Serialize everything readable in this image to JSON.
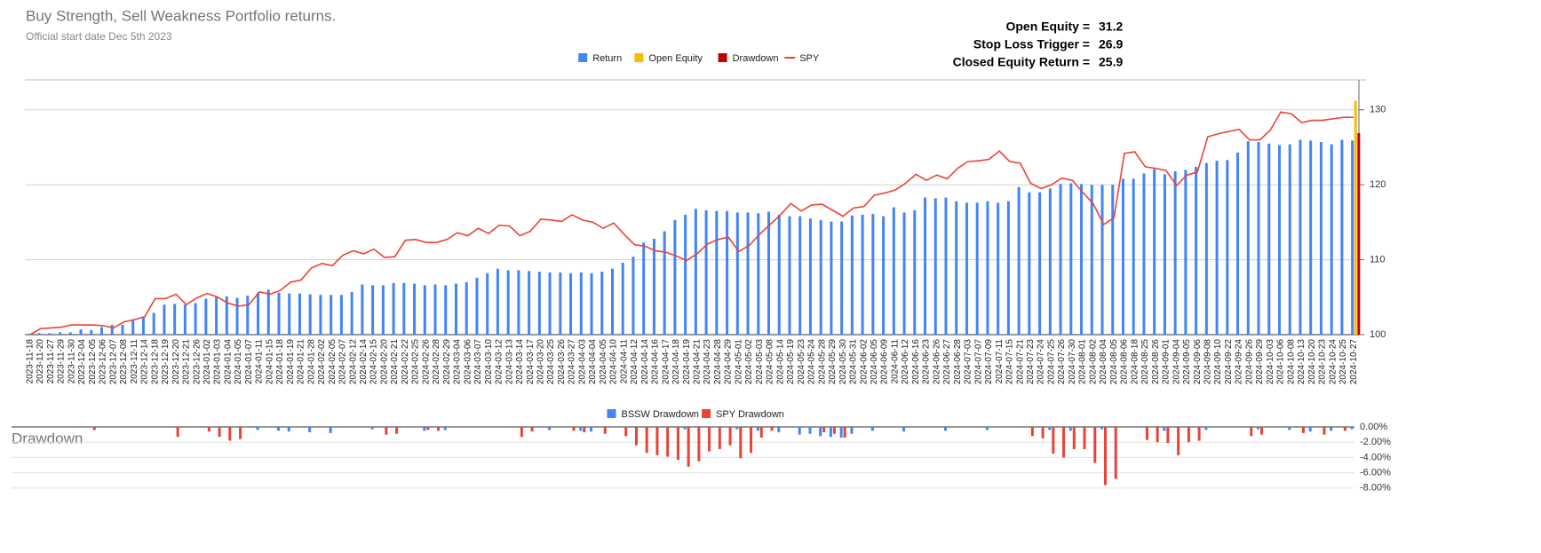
{
  "chart_data": [
    {
      "type": "combo",
      "title": "Buy Strength, Sell Weakness Portfolio returns.",
      "subtitle": "Official start date Dec 5th 2023",
      "annotations": [
        {
          "label": "Open Equity =",
          "value": 31.2
        },
        {
          "label": "Stop Loss Trigger =",
          "value": 26.9
        },
        {
          "label": "Closed Equity Return =",
          "value": 25.9
        }
      ],
      "categories": [
        "2023-11-18",
        "2023-11-20",
        "2023-11-27",
        "2023-11-29",
        "2023-11-30",
        "2023-12-04",
        "2023-12-05",
        "2023-12-06",
        "2023-12-07",
        "2023-12-08",
        "2023-12-11",
        "2023-12-14",
        "2023-12-18",
        "2023-12-19",
        "2023-12-20",
        "2023-12-21",
        "2023-12-26",
        "2024-01-02",
        "2024-01-03",
        "2024-01-04",
        "2024-01-05",
        "2024-01-07",
        "2024-01-11",
        "2024-01-15",
        "2024-01-18",
        "2024-01-19",
        "2024-01-21",
        "2024-01-28",
        "2024-02-02",
        "2024-02-05",
        "2024-02-07",
        "2024-02-12",
        "2024-02-14",
        "2024-02-15",
        "2024-02-20",
        "2024-02-21",
        "2024-02-22",
        "2024-02-25",
        "2024-02-26",
        "2024-02-28",
        "2024-02-29",
        "2024-03-04",
        "2024-03-06",
        "2024-03-07",
        "2024-03-10",
        "2024-03-12",
        "2024-03-13",
        "2024-03-14",
        "2024-03-17",
        "2024-03-20",
        "2024-03-25",
        "2024-03-26",
        "2024-03-27",
        "2024-04-03",
        "2024-04-04",
        "2024-04-05",
        "2024-04-10",
        "2024-04-11",
        "2024-04-12",
        "2024-04-14",
        "2024-04-16",
        "2024-04-17",
        "2024-04-18",
        "2024-04-19",
        "2024-04-21",
        "2024-04-23",
        "2024-04-28",
        "2024-04-29",
        "2024-05-01",
        "2024-05-02",
        "2024-05-03",
        "2024-05-08",
        "2024-05-14",
        "2024-05-19",
        "2024-05-23",
        "2024-05-24",
        "2024-05-28",
        "2024-05-29",
        "2024-05-30",
        "2024-05-31",
        "2024-06-02",
        "2024-06-05",
        "2024-06-09",
        "2024-06-11",
        "2024-06-12",
        "2024-06-16",
        "2024-06-23",
        "2024-06-26",
        "2024-06-27",
        "2024-06-28",
        "2024-07-03",
        "2024-07-07",
        "2024-07-09",
        "2024-07-11",
        "2024-07-15",
        "2024-07-21",
        "2024-07-23",
        "2024-07-24",
        "2024-07-25",
        "2024-07-26",
        "2024-07-30",
        "2024-08-01",
        "2024-08-02",
        "2024-08-04",
        "2024-08-05",
        "2024-08-06",
        "2024-08-18",
        "2024-08-25",
        "2024-08-26",
        "2024-09-01",
        "2024-09-04",
        "2024-09-05",
        "2024-09-06",
        "2024-09-08",
        "2024-09-10",
        "2024-09-22",
        "2024-09-24",
        "2024-09-26",
        "2024-09-29",
        "2024-10-03",
        "2024-10-06",
        "2024-10-08",
        "2024-10-13",
        "2024-10-20",
        "2024-10-23",
        "2024-10-24",
        "2024-10-25",
        "2024-10-27"
      ],
      "series": [
        {
          "name": "Return",
          "type": "bar",
          "color": "#4285f4",
          "values": [
            100.1,
            100.2,
            100.2,
            100.3,
            100.3,
            100.7,
            100.6,
            101.0,
            101.3,
            101.3,
            101.9,
            102.3,
            102.9,
            104.0,
            104.1,
            104.0,
            104.2,
            104.8,
            105.0,
            105.1,
            104.9,
            105.2,
            105.6,
            106.0,
            105.6,
            105.5,
            105.5,
            105.4,
            105.3,
            105.3,
            105.3,
            105.7,
            106.7,
            106.6,
            106.6,
            106.9,
            106.9,
            106.8,
            106.6,
            106.7,
            106.6,
            106.8,
            107.0,
            107.6,
            108.2,
            108.8,
            108.6,
            108.6,
            108.5,
            108.4,
            108.3,
            108.3,
            108.2,
            108.3,
            108.2,
            108.4,
            108.8,
            109.6,
            110.4,
            112.3,
            112.8,
            113.8,
            115.3,
            116.0,
            116.8,
            116.6,
            116.5,
            116.5,
            116.3,
            116.3,
            116.2,
            116.4,
            116.0,
            115.8,
            115.8,
            115.5,
            115.3,
            115.1,
            115.1,
            115.9,
            116.0,
            116.1,
            115.8,
            117.0,
            116.3,
            116.6,
            118.3,
            118.2,
            118.3,
            117.8,
            117.6,
            117.6,
            117.8,
            117.6,
            117.8,
            119.7,
            119.0,
            119.0,
            119.5,
            120.1,
            120.2,
            120.1,
            120.0,
            120.0,
            120.0,
            120.8,
            120.8,
            121.5,
            122.1,
            121.4,
            121.8,
            122.0,
            122.4,
            122.9,
            123.2,
            123.3,
            124.3,
            125.8,
            125.7,
            125.5,
            125.3,
            125.4,
            126.0,
            125.9,
            125.7,
            125.4,
            126.0,
            125.9
          ]
        },
        {
          "name": "Open Equity",
          "type": "bar",
          "color": "#fbbc04",
          "values": [
            null,
            null,
            null,
            null,
            null,
            null,
            null,
            null,
            null,
            null,
            null,
            null,
            null,
            null,
            null,
            null,
            null,
            null,
            null,
            null,
            null,
            null,
            null,
            null,
            null,
            null,
            null,
            null,
            null,
            null,
            null,
            null,
            null,
            null,
            null,
            null,
            null,
            null,
            null,
            null,
            null,
            null,
            null,
            null,
            null,
            null,
            null,
            null,
            null,
            null,
            null,
            null,
            null,
            null,
            null,
            null,
            null,
            null,
            null,
            null,
            null,
            null,
            null,
            null,
            null,
            null,
            null,
            null,
            null,
            null,
            null,
            null,
            null,
            null,
            null,
            null,
            null,
            null,
            null,
            null,
            null,
            null,
            null,
            null,
            null,
            null,
            null,
            null,
            null,
            null,
            null,
            null,
            null,
            null,
            null,
            null,
            null,
            null,
            null,
            null,
            null,
            null,
            null,
            null,
            null,
            null,
            null,
            null,
            null,
            null,
            null,
            null,
            null,
            null,
            null,
            null,
            null,
            null,
            null,
            null,
            null,
            null,
            null,
            null,
            null,
            null,
            null,
            131.2
          ]
        },
        {
          "name": "Drawdown",
          "type": "bar",
          "color": "#c00000",
          "values": [
            null,
            null,
            null,
            null,
            null,
            null,
            null,
            null,
            null,
            null,
            null,
            null,
            null,
            null,
            null,
            null,
            null,
            null,
            null,
            null,
            null,
            null,
            null,
            null,
            null,
            null,
            null,
            null,
            null,
            null,
            null,
            null,
            null,
            null,
            null,
            null,
            null,
            null,
            null,
            null,
            null,
            null,
            null,
            null,
            null,
            null,
            null,
            null,
            null,
            null,
            null,
            null,
            null,
            null,
            null,
            null,
            null,
            null,
            null,
            null,
            null,
            null,
            null,
            null,
            null,
            null,
            null,
            null,
            null,
            null,
            null,
            null,
            null,
            null,
            null,
            null,
            null,
            null,
            null,
            null,
            null,
            null,
            null,
            null,
            null,
            null,
            null,
            null,
            null,
            null,
            null,
            null,
            null,
            null,
            null,
            null,
            null,
            null,
            null,
            null,
            null,
            null,
            null,
            null,
            null,
            null,
            null,
            null,
            null,
            null,
            null,
            null,
            null,
            null,
            null,
            null,
            null,
            null,
            null,
            null,
            null,
            null,
            null,
            null,
            null,
            null,
            null,
            126.9
          ]
        },
        {
          "name": "SPY",
          "type": "line",
          "color": "#ea4335",
          "values": [
            100.0,
            100.8,
            100.9,
            101.0,
            101.3,
            101.3,
            101.3,
            101.2,
            100.9,
            101.7,
            102.0,
            102.4,
            104.8,
            104.8,
            105.4,
            104.0,
            104.9,
            105.5,
            105.0,
            104.2,
            103.8,
            104.0,
            105.7,
            105.4,
            105.9,
            107.0,
            107.3,
            108.9,
            109.5,
            109.2,
            110.6,
            111.2,
            110.8,
            111.4,
            110.3,
            110.4,
            112.6,
            112.7,
            112.3,
            112.3,
            112.7,
            113.6,
            113.2,
            114.2,
            113.5,
            114.6,
            114.5,
            113.2,
            113.8,
            115.4,
            115.3,
            115.1,
            116.0,
            115.3,
            115.0,
            114.2,
            114.9,
            113.4,
            112.0,
            111.8,
            111.2,
            111.0,
            110.5,
            109.9,
            110.8,
            112.1,
            112.7,
            113.0,
            111.1,
            111.9,
            113.4,
            114.7,
            116.0,
            117.5,
            116.5,
            117.3,
            117.4,
            116.6,
            115.8,
            116.9,
            117.1,
            118.6,
            118.9,
            119.3,
            120.2,
            121.4,
            120.6,
            121.3,
            120.8,
            122.2,
            123.1,
            123.2,
            123.4,
            124.5,
            123.1,
            122.9,
            120.2,
            119.5,
            120.0,
            120.9,
            120.6,
            119.0,
            117.5,
            114.7,
            115.6,
            124.2,
            124.4,
            122.4,
            122.2,
            121.9,
            119.9,
            121.3,
            121.7,
            126.4,
            126.8,
            127.1,
            127.4,
            126.0,
            126.0,
            127.3,
            129.7,
            129.5,
            128.3,
            128.6,
            128.6,
            128.8,
            129.0,
            129.0
          ]
        }
      ],
      "ylim": [
        100,
        134
      ],
      "yticks": [
        100,
        110,
        120,
        130
      ],
      "grid": true,
      "legend": "top"
    },
    {
      "type": "bar",
      "title": "Drawdown",
      "series": [
        {
          "name": "BSSW Drawdown",
          "color": "#4285f4",
          "values": [
            0,
            0,
            0,
            0,
            0,
            0,
            0,
            0,
            0,
            0,
            0,
            0,
            0,
            0,
            0,
            0,
            0,
            0,
            0,
            0,
            0,
            0,
            -0.4,
            0,
            -0.5,
            -0.6,
            0,
            -0.7,
            0,
            -0.8,
            0,
            0,
            0,
            -0.3,
            0,
            0,
            0,
            0,
            -0.5,
            0,
            -0.4,
            0,
            0,
            0,
            0,
            0,
            0,
            0,
            0,
            0,
            -0.4,
            0,
            0,
            -0.5,
            -0.6,
            0,
            0,
            0,
            0,
            0,
            0,
            0,
            0,
            -0.3,
            0,
            0,
            0,
            0,
            -0.3,
            0,
            -0.5,
            0,
            -0.7,
            0,
            -1.0,
            -0.9,
            -1.2,
            -1.3,
            -1.4,
            -0.9,
            0,
            -0.5,
            0,
            0,
            -0.6,
            0,
            0,
            0,
            -0.5,
            0,
            0,
            0,
            -0.4,
            0,
            0,
            0,
            0,
            0,
            -0.4,
            0,
            -0.5,
            0,
            0,
            -0.3,
            0,
            0,
            0,
            0,
            0,
            -0.5,
            0,
            0,
            0,
            -0.4,
            0,
            0,
            0,
            0,
            -0.3,
            0,
            0,
            -0.4,
            0,
            -0.6,
            0,
            -0.5,
            0,
            -0.3
          ]
        },
        {
          "name": "SPY Drawdown",
          "color": "#ea4335",
          "values": [
            0,
            0,
            0,
            0,
            0,
            0,
            -0.4,
            0,
            0,
            0,
            0,
            0,
            0,
            0,
            -1.3,
            0,
            0,
            -0.6,
            -1.3,
            -1.8,
            -1.6,
            0,
            0,
            0,
            0,
            0,
            0,
            0,
            0,
            0,
            0,
            0,
            0,
            0,
            -1.0,
            -0.9,
            0,
            0,
            -0.4,
            -0.5,
            0,
            0,
            0,
            0,
            0,
            0,
            0,
            -1.3,
            -0.6,
            0,
            0,
            0,
            -0.5,
            -0.7,
            0,
            -0.9,
            0,
            -1.2,
            -2.4,
            -3.4,
            -3.7,
            -3.9,
            -4.3,
            -5.2,
            -4.5,
            -3.2,
            -2.9,
            -2.4,
            -4.1,
            -3.4,
            -1.4,
            -0.5,
            0,
            0,
            0,
            0,
            -0.7,
            -0.9,
            -1.4,
            0,
            0,
            0,
            0,
            0,
            0,
            0,
            0,
            0,
            0,
            0,
            0,
            0,
            0,
            0,
            0,
            0,
            -1.2,
            -1.5,
            -3.5,
            -4.0,
            -2.9,
            -2.9,
            -4.7,
            -7.6,
            -6.8,
            0,
            0,
            -1.7,
            -2.0,
            -2.1,
            -3.7,
            -2.0,
            -1.8,
            0,
            0,
            0,
            0,
            -1.2,
            -1.0,
            0,
            0,
            0,
            -0.8,
            0,
            -1.0,
            0,
            -0.5,
            0
          ]
        }
      ],
      "ylim": [
        -8.6,
        0
      ],
      "yticks": [
        {
          "value": 0,
          "label": "0.00%"
        },
        {
          "value": -2,
          "label": "-2.00%"
        },
        {
          "value": -4,
          "label": "-4.00%"
        },
        {
          "value": -6,
          "label": "-6.00%"
        },
        {
          "value": -8,
          "label": "-8.00%"
        }
      ],
      "grid": true,
      "legend": "top"
    }
  ]
}
